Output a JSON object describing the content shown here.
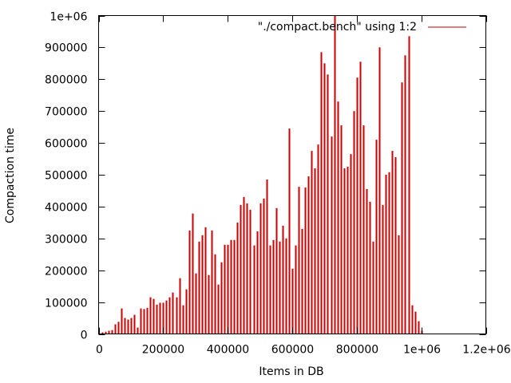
{
  "chart_data": {
    "type": "bar",
    "xlabel": "Items in DB",
    "ylabel": "Compaction time",
    "xlim": [
      0,
      1200000
    ],
    "ylim": [
      0,
      1000000
    ],
    "x_ticks": [
      {
        "value": 0,
        "label": "0"
      },
      {
        "value": 200000,
        "label": "200000"
      },
      {
        "value": 400000,
        "label": "400000"
      },
      {
        "value": 600000,
        "label": "600000"
      },
      {
        "value": 800000,
        "label": "800000"
      },
      {
        "value": 1000000,
        "label": "1e+06"
      },
      {
        "value": 1200000,
        "label": "1.2e+06"
      }
    ],
    "y_ticks": [
      {
        "value": 0,
        "label": "0"
      },
      {
        "value": 100000,
        "label": "100000"
      },
      {
        "value": 200000,
        "label": "200000"
      },
      {
        "value": 300000,
        "label": "300000"
      },
      {
        "value": 400000,
        "label": "400000"
      },
      {
        "value": 500000,
        "label": "500000"
      },
      {
        "value": 600000,
        "label": "600000"
      },
      {
        "value": 700000,
        "label": "700000"
      },
      {
        "value": 800000,
        "label": "800000"
      },
      {
        "value": 900000,
        "label": "900000"
      },
      {
        "value": 1000000,
        "label": "1e+06"
      }
    ],
    "legend_position": "top-right",
    "grid": false,
    "series": [
      {
        "name": "\"./compact.bench\" using 1:2",
        "color": "#cc0000",
        "x": [
          10000,
          20000,
          30000,
          40000,
          50000,
          60000,
          70000,
          80000,
          90000,
          100000,
          110000,
          120000,
          130000,
          140000,
          150000,
          160000,
          170000,
          180000,
          190000,
          200000,
          210000,
          220000,
          230000,
          240000,
          250000,
          260000,
          270000,
          280000,
          290000,
          300000,
          310000,
          320000,
          330000,
          340000,
          350000,
          360000,
          370000,
          380000,
          390000,
          400000,
          410000,
          420000,
          430000,
          440000,
          450000,
          460000,
          470000,
          480000,
          490000,
          500000,
          510000,
          520000,
          530000,
          540000,
          550000,
          560000,
          570000,
          580000,
          590000,
          600000,
          610000,
          620000,
          630000,
          640000,
          650000,
          660000,
          670000,
          680000,
          690000,
          700000,
          710000,
          720000,
          730000,
          740000,
          750000,
          760000,
          770000,
          780000,
          790000,
          800000,
          810000,
          820000,
          830000,
          840000,
          850000,
          860000,
          870000,
          880000,
          890000,
          900000,
          910000,
          920000,
          930000,
          940000,
          950000,
          960000,
          970000,
          980000,
          990000,
          1000000
        ],
        "y": [
          5000,
          7000,
          10000,
          12000,
          30000,
          38000,
          80000,
          50000,
          45000,
          50000,
          60000,
          20000,
          80000,
          78000,
          82000,
          115000,
          110000,
          92000,
          98000,
          98000,
          105000,
          115000,
          130000,
          115000,
          175000,
          90000,
          140000,
          325000,
          378000,
          190000,
          290000,
          310000,
          335000,
          185000,
          325000,
          250000,
          155000,
          225000,
          280000,
          280000,
          295000,
          295000,
          350000,
          405000,
          430000,
          410000,
          390000,
          278000,
          322000,
          410000,
          425000,
          485000,
          278000,
          295000,
          395000,
          290000,
          340000,
          300000,
          645000,
          205000,
          278000,
          462000,
          330000,
          460000,
          495000,
          575000,
          520000,
          595000,
          885000,
          850000,
          815000,
          620000,
          1000000,
          730000,
          655000,
          520000,
          525000,
          565000,
          700000,
          805000,
          855000,
          655000,
          455000,
          415000,
          290000,
          610000,
          900000,
          405000,
          500000,
          508000,
          575000,
          555000,
          310000,
          790000,
          875000,
          935000,
          90000,
          70000,
          40000,
          10000
        ]
      }
    ]
  }
}
